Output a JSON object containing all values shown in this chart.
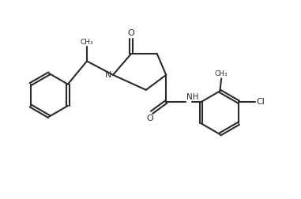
{
  "background": "#ffffff",
  "line_color": "#2a2a2a",
  "line_width": 1.5,
  "figsize": [
    3.81,
    2.52
  ],
  "dpi": 100,
  "xlim": [
    0,
    10
  ],
  "ylim": [
    0,
    6.6
  ]
}
